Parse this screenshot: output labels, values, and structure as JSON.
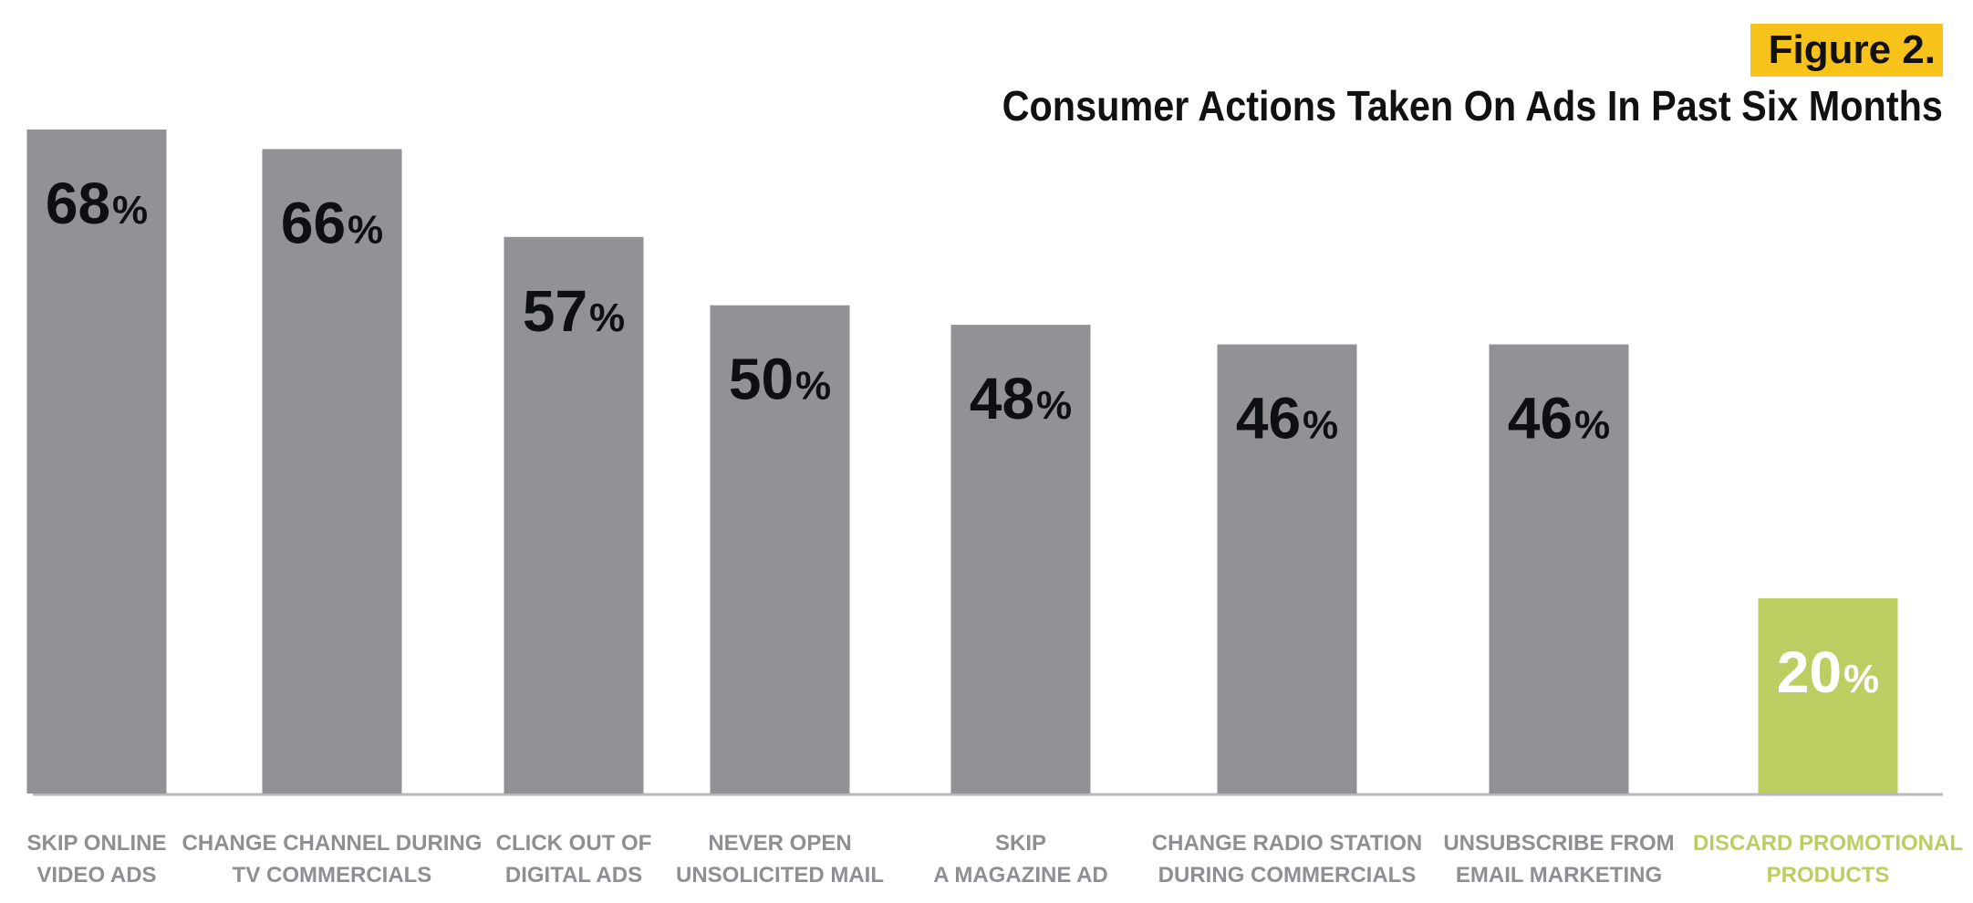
{
  "figure_label": "Figure 2.",
  "colors": {
    "bar": "#929196",
    "highlight": "#bccd62",
    "value_text": "#0d0f14",
    "highlight_value_text": "#ffffff",
    "label_text": "#8f8e92",
    "badge": "#f7c21a",
    "baseline": "#b9b8bc"
  },
  "chart_data": {
    "type": "bar",
    "title": "Consumer Actions Taken On Ads In Past Six Months",
    "xlabel": "",
    "ylabel": "",
    "ylim": [
      0,
      68
    ],
    "grid": false,
    "categories": [
      [
        "SKIP ONLINE",
        "VIDEO ADS"
      ],
      [
        "CHANGE CHANNEL DURING",
        "TV COMMERCIALS"
      ],
      [
        "CLICK OUT OF",
        "DIGITAL ADS"
      ],
      [
        "NEVER OPEN",
        "UNSOLICITED MAIL"
      ],
      [
        "SKIP",
        "A MAGAZINE AD"
      ],
      [
        "CHANGE RADIO STATION",
        "DURING COMMERCIALS"
      ],
      [
        "UNSUBSCRIBE FROM",
        "EMAIL MARKETING"
      ],
      [
        "DISCARD PROMOTIONAL",
        "PRODUCTS"
      ]
    ],
    "values": [
      68,
      66,
      57,
      50,
      48,
      46,
      46,
      20
    ],
    "value_labels": [
      "68",
      "66",
      "57",
      "50",
      "48",
      "46",
      "46",
      "20"
    ],
    "value_suffix": "%",
    "highlighted_index": 7
  }
}
